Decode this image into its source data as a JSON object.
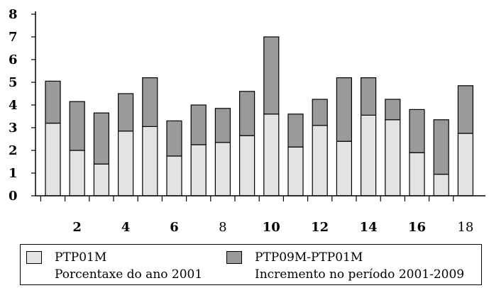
{
  "chart_data": {
    "type": "bar",
    "stacked": true,
    "categories": [
      "1",
      "2",
      "3",
      "4",
      "5",
      "6",
      "7",
      "8",
      "9",
      "10",
      "11",
      "12",
      "13",
      "14",
      "15",
      "16",
      "17",
      "18"
    ],
    "x_tick_labels": [
      {
        "index": 1,
        "label": "2"
      },
      {
        "index": 3,
        "label": "4"
      },
      {
        "index": 5,
        "label": "6"
      },
      {
        "index": 7,
        "label": "8"
      },
      {
        "index": 9,
        "label": "10"
      },
      {
        "index": 11,
        "label": "12"
      },
      {
        "index": 13,
        "label": "14"
      },
      {
        "index": 15,
        "label": "16"
      },
      {
        "index": 17,
        "label": "18"
      }
    ],
    "y_tick_labels": [
      "0",
      "1",
      "2",
      "3",
      "4",
      "5",
      "6",
      "7",
      "8"
    ],
    "ylim": [
      0,
      8
    ],
    "grid": false,
    "series": [
      {
        "name": "PTP01M",
        "color": "#e3e3e3",
        "values": [
          3.2,
          2.0,
          1.4,
          2.85,
          3.05,
          1.75,
          2.25,
          2.35,
          2.65,
          3.6,
          2.15,
          3.1,
          2.4,
          3.55,
          3.35,
          1.9,
          0.95,
          2.75
        ]
      },
      {
        "name": "PTP09M-PTP01M",
        "color": "#9a9a9a",
        "values": [
          1.85,
          2.15,
          2.25,
          1.65,
          2.15,
          1.55,
          1.75,
          1.5,
          1.95,
          3.4,
          1.45,
          1.15,
          2.8,
          1.65,
          0.9,
          1.9,
          2.4,
          2.1
        ]
      }
    ]
  },
  "legend": {
    "items": [
      {
        "name": "PTP01M",
        "description": "Porcentaxe do ano 2001"
      },
      {
        "name": "PTP09M-PTP01M",
        "description": "Incremento no período 2001-2009"
      }
    ]
  },
  "colors": {
    "base_fill": "#e3e3e3",
    "increment_fill": "#9a9a9a",
    "outline": "#000000"
  }
}
